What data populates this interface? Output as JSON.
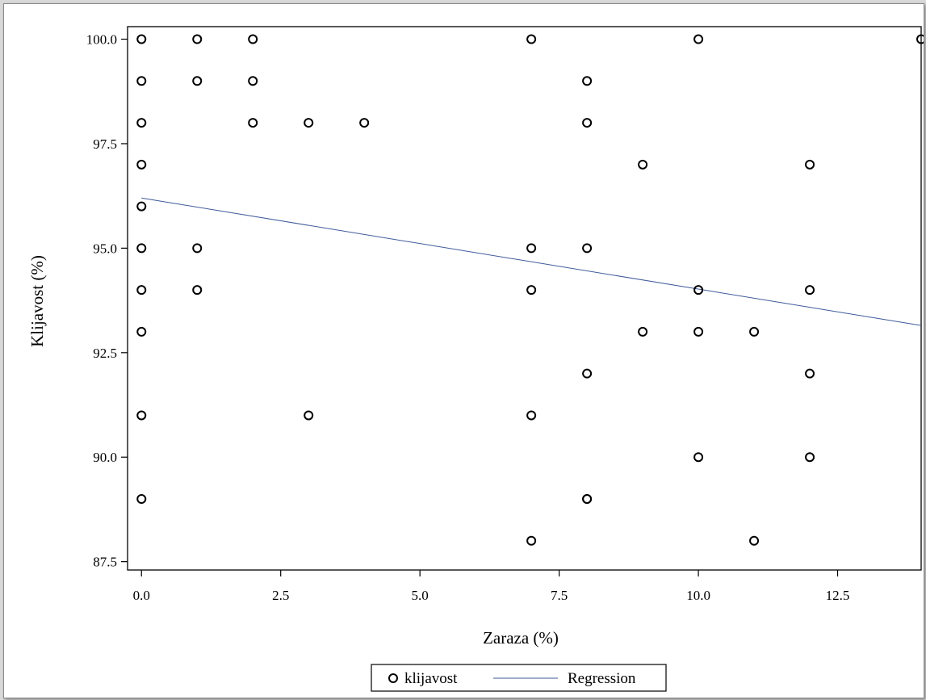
{
  "chart_data": {
    "type": "scatter",
    "title": "",
    "xlabel": "Zaraza (%)",
    "ylabel": "Klijavost (%)",
    "xlim": [
      -0.25,
      14.0
    ],
    "ylim": [
      87.3,
      100.3
    ],
    "xticks": [
      0.0,
      2.5,
      5.0,
      7.5,
      10.0,
      12.5
    ],
    "yticks": [
      87.5,
      90.0,
      92.5,
      95.0,
      97.5,
      100.0
    ],
    "xtick_labels": [
      "0.0",
      "2.5",
      "5.0",
      "7.5",
      "10.0",
      "12.5"
    ],
    "ytick_labels": [
      "87.5",
      "90.0",
      "92.5",
      "95.0",
      "97.5",
      "100.0"
    ],
    "grid": false,
    "legend_position": "bottom-center",
    "series": [
      {
        "name": "klijavost",
        "kind": "scatter",
        "marker": "open-circle",
        "color": "#000000",
        "x": [
          0,
          0,
          0,
          0,
          0,
          0,
          0,
          0,
          0,
          0,
          1,
          1,
          1,
          1,
          2,
          2,
          2,
          3,
          3,
          4,
          7,
          7,
          7,
          7,
          7,
          8,
          8,
          8,
          8,
          8,
          8,
          9,
          9,
          10,
          10,
          10,
          10,
          11,
          11,
          12,
          12,
          12,
          12,
          14
        ],
        "y": [
          100,
          99,
          98,
          97,
          96,
          95,
          94,
          93,
          91,
          89,
          100,
          99,
          95,
          94,
          100,
          99,
          98,
          98,
          91,
          98,
          100,
          95,
          94,
          91,
          88,
          99,
          98,
          95,
          92,
          89,
          89,
          97,
          93,
          100,
          94,
          93,
          90,
          93,
          88,
          97,
          94,
          92,
          90,
          100
        ]
      },
      {
        "name": "Regression",
        "kind": "line",
        "color": "#3f5a9a",
        "x": [
          0,
          14
        ],
        "y": [
          96.2,
          93.15
        ]
      }
    ]
  }
}
